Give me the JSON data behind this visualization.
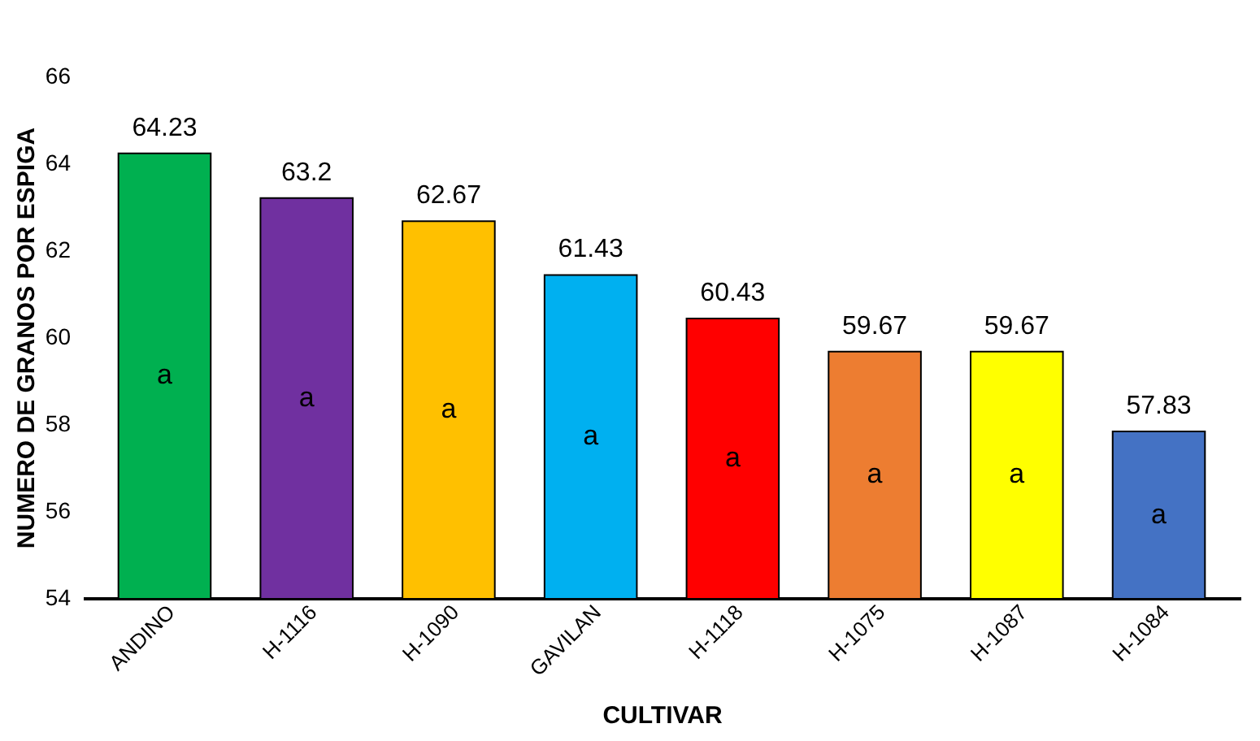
{
  "chart_data": {
    "type": "bar",
    "xlabel": "CULTIVAR",
    "ylabel": "NUMERO DE GRANOS POR ESPIGA",
    "categories": [
      "ANDINO",
      "H-1116",
      "H-1090",
      "GAVILAN",
      "H-1118",
      "H-1075",
      "H-1087",
      "H-1084"
    ],
    "values": [
      64.23,
      63.2,
      62.67,
      61.43,
      60.43,
      59.67,
      59.67,
      57.83
    ],
    "colors": [
      "#00b050",
      "#7030a0",
      "#ffc000",
      "#00b0f0",
      "#ff0000",
      "#ed7d31",
      "#ffff00",
      "#4472c4"
    ],
    "ylim": [
      54,
      66
    ],
    "yticks": [
      54,
      56,
      58,
      60,
      62,
      64,
      66
    ],
    "grid": false,
    "data_labels": true,
    "annotations": [
      "a",
      "a",
      "a",
      "a",
      "a",
      "a",
      "a",
      "a"
    ]
  }
}
